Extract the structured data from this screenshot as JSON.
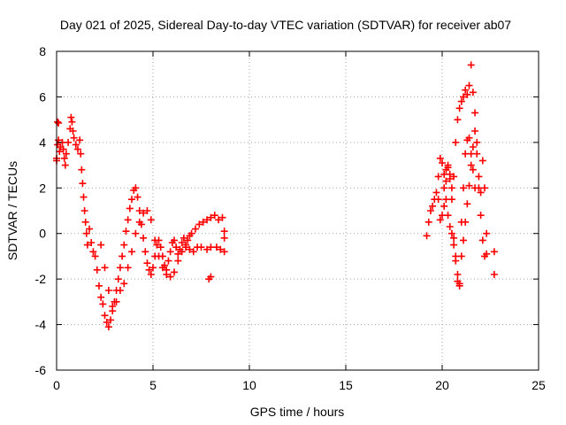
{
  "chart_data": {
    "type": "scatter",
    "title": "Day 021 of 2025, Sidereal Day-to-day VTEC variation (SDTVAR) for receiver ab07",
    "xlabel": "GPS time / hours",
    "ylabel": "SDTVAR / TECUs",
    "xlim": [
      0,
      25
    ],
    "ylim": [
      -6,
      8
    ],
    "xticks": [
      0,
      5,
      10,
      15,
      20,
      25
    ],
    "yticks": [
      -6,
      -4,
      -2,
      0,
      2,
      4,
      6,
      8
    ],
    "grid": true,
    "marker": "+",
    "series_color": "#ff0000",
    "series": [
      {
        "name": "SDTVAR",
        "x": [
          0.0,
          0.05,
          0.1,
          0.15,
          0.2,
          0.3,
          0.35,
          0.4,
          0.45,
          0.5,
          0.6,
          0.7,
          0.75,
          0.8,
          0.85,
          0.9,
          1.0,
          1.1,
          1.2,
          1.25,
          1.3,
          1.35,
          1.4,
          1.45,
          1.5,
          1.55,
          1.6,
          1.7,
          1.8,
          1.9,
          2.0,
          2.1,
          2.2,
          2.3,
          2.4,
          2.5,
          2.6,
          2.7,
          2.8,
          2.9,
          3.0,
          3.1,
          3.2,
          3.3,
          3.4,
          3.5,
          3.6,
          3.7,
          3.8,
          3.9,
          4.0,
          4.1,
          4.2,
          4.3,
          4.4,
          4.5,
          4.6,
          4.7,
          4.8,
          4.9,
          5.0,
          5.1,
          5.2,
          5.3,
          5.4,
          5.5,
          5.6,
          5.7,
          5.8,
          5.9,
          6.0,
          6.1,
          6.2,
          6.3,
          6.4,
          6.5,
          6.6,
          6.7,
          6.8,
          6.9,
          7.0,
          7.2,
          7.4,
          7.6,
          7.8,
          8.0,
          8.2,
          8.4,
          8.6,
          8.7,
          0.05,
          0.1,
          0.0,
          2.3,
          2.5,
          2.7,
          2.9,
          3.1,
          3.3,
          3.5,
          3.7,
          3.9,
          4.1,
          4.3,
          4.5,
          4.7,
          4.9,
          5.1,
          5.3,
          5.5,
          5.7,
          5.9,
          6.1,
          6.3,
          6.5,
          6.7,
          6.9,
          7.1,
          7.3,
          7.5,
          7.8,
          8.0,
          8.3,
          8.5,
          8.7,
          7.9,
          8.0,
          8.7,
          19.2,
          19.3,
          19.4,
          19.5,
          19.6,
          19.7,
          19.8,
          19.9,
          20.0,
          20.1,
          20.2,
          20.3,
          20.4,
          20.5,
          20.6,
          20.7,
          20.8,
          20.9,
          21.0,
          21.1,
          21.2,
          21.3,
          21.4,
          21.5,
          21.6,
          21.7,
          21.8,
          21.9,
          22.0,
          22.1,
          22.2,
          22.3,
          19.8,
          19.9,
          20.0,
          20.1,
          20.2,
          20.3,
          20.4,
          20.5,
          20.6,
          20.7,
          20.8,
          20.9,
          21.0,
          21.1,
          21.2,
          21.3,
          21.4,
          21.5,
          21.6,
          21.7,
          21.8,
          21.9,
          22.0,
          22.1,
          22.2,
          22.3,
          20.1,
          20.2,
          20.3,
          20.4,
          20.5,
          20.6,
          20.7,
          20.8,
          20.9,
          21.0,
          21.1,
          21.2,
          21.3,
          21.4,
          21.5,
          21.6,
          21.7,
          22.7,
          22.7
        ],
        "y": [
          3.3,
          4.9,
          4.85,
          3.6,
          3.8,
          4.0,
          3.7,
          3.3,
          3.0,
          3.5,
          4.0,
          4.6,
          5.1,
          4.9,
          4.5,
          4.2,
          3.9,
          3.7,
          4.1,
          3.5,
          2.8,
          2.2,
          1.6,
          1.0,
          0.5,
          0.0,
          -0.5,
          0.2,
          -0.4,
          -0.8,
          -1.0,
          -1.6,
          -2.3,
          -2.8,
          -3.1,
          -3.6,
          -3.9,
          -4.1,
          -3.8,
          -3.4,
          -3.0,
          -2.5,
          -2.0,
          -1.5,
          -1.0,
          -0.5,
          0.1,
          0.6,
          1.1,
          1.5,
          1.9,
          2.0,
          1.6,
          1.0,
          0.4,
          -0.2,
          -0.8,
          -1.3,
          -1.6,
          -1.8,
          -1.5,
          -1.0,
          -0.5,
          -0.3,
          -0.6,
          -1.0,
          -1.4,
          -1.6,
          -1.2,
          -0.8,
          -0.4,
          -0.3,
          -0.6,
          -0.9,
          -0.7,
          -0.4,
          -0.2,
          -0.5,
          -0.3,
          -0.1,
          0.0,
          0.2,
          0.4,
          0.5,
          0.6,
          0.7,
          0.8,
          0.6,
          0.7,
          0.1,
          3.9,
          4.1,
          3.2,
          -0.5,
          -1.5,
          -2.5,
          -3.2,
          -3.0,
          -2.5,
          -2.2,
          -1.5,
          -0.8,
          0.0,
          0.5,
          0.9,
          1.0,
          0.6,
          -0.3,
          -1.0,
          -1.5,
          -1.8,
          -1.9,
          -1.7,
          -1.2,
          -0.8,
          -0.6,
          -0.7,
          -0.8,
          -0.6,
          -0.6,
          -0.7,
          -0.6,
          -0.6,
          -0.7,
          -0.8,
          -2.0,
          -1.9,
          -0.2,
          -0.1,
          0.5,
          1.0,
          1.2,
          1.5,
          1.8,
          2.5,
          3.3,
          3.1,
          2.6,
          2.3,
          2.9,
          2.6,
          2.0,
          2.5,
          4.0,
          5.0,
          5.5,
          5.8,
          6.0,
          6.3,
          6.1,
          6.5,
          7.4,
          6.2,
          5.3,
          3.5,
          2.5,
          1.8,
          3.2,
          2.0,
          0.0,
          1.5,
          0.6,
          0.8,
          1.2,
          2.8,
          3.0,
          2.4,
          1.5,
          -0.2,
          -1.2,
          -2.1,
          -2.2,
          -1.0,
          -0.3,
          0.5,
          1.3,
          2.1,
          3.0,
          3.8,
          4.5,
          4.0,
          2.0,
          0.8,
          -0.3,
          -1.0,
          -0.9,
          2.0,
          1.5,
          0.8,
          0.3,
          0.0,
          -0.5,
          -1.0,
          -1.8,
          -2.3,
          0.5,
          2.0,
          3.5,
          4.1,
          4.2,
          3.5,
          2.8,
          2.0,
          -0.8,
          -1.8
        ]
      }
    ]
  }
}
